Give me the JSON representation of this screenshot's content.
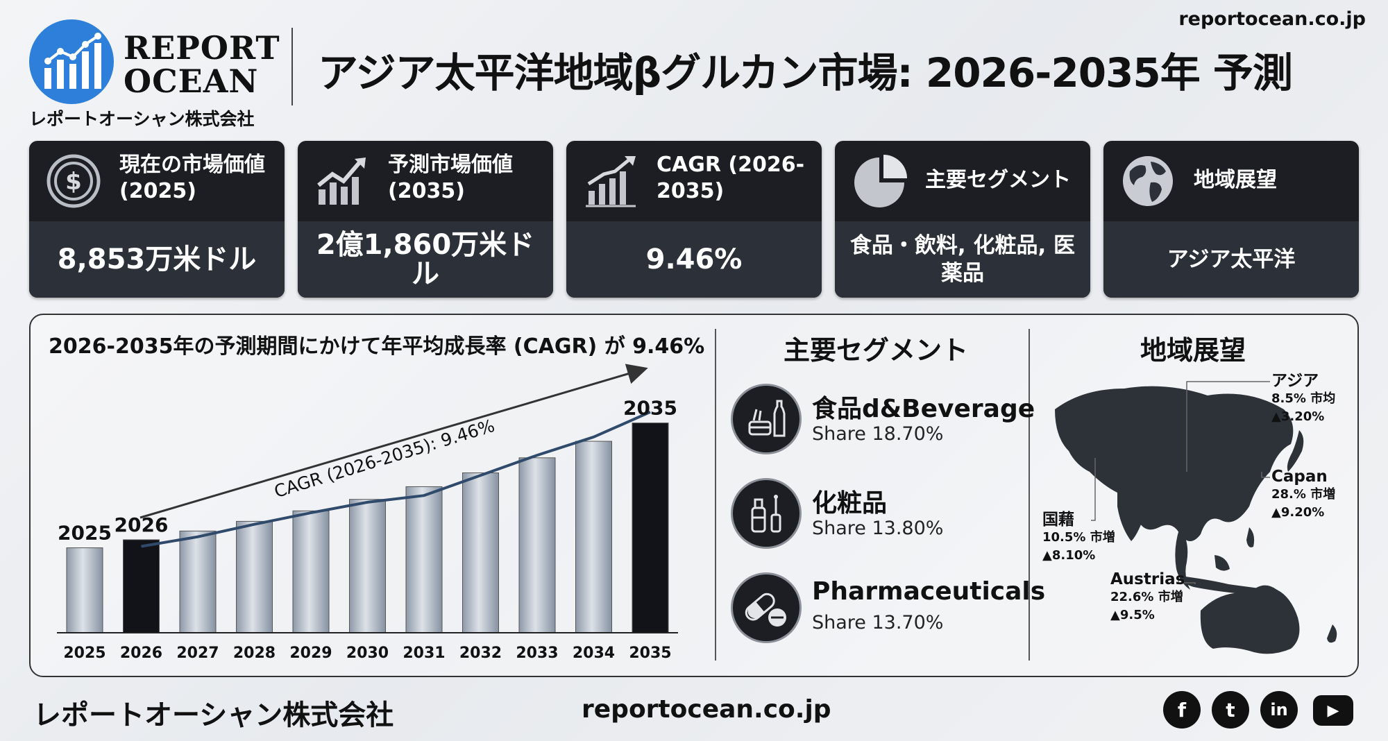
{
  "header": {
    "logo_line1": "REPORT",
    "logo_line2": "OCEAN",
    "logo_sub": "レポートオーシャン株式会社",
    "title": "アジア太平洋地域βグルカン市場: 2026-2035年 予測",
    "url": "reportocean.co.jp"
  },
  "cards": [
    {
      "title": "現在の市場価値 (2025)",
      "value": "8,853万米ドル",
      "icon": "dollar-coin-icon"
    },
    {
      "title": "予測市場価値 (2035)",
      "value": "2億1,860万米ドル",
      "icon": "growth-chart-icon"
    },
    {
      "title": "CAGR (2026-2035)",
      "value": "9.46%",
      "icon": "bar-growth-icon"
    },
    {
      "title": "主要セグメント",
      "value": "食品・飲料, 化粧品, 医薬品",
      "icon": "pie-chart-icon"
    },
    {
      "title": "地域展望",
      "value": "アジア太平洋",
      "icon": "globe-icon"
    }
  ],
  "chart_data": {
    "type": "bar",
    "title": "2026-2035年の予測期間にかけて年平均成長率 (CAGR) が 9.46%",
    "categories": [
      "2025",
      "2026",
      "2027",
      "2028",
      "2029",
      "2030",
      "2031",
      "2032",
      "2033",
      "2034",
      "2035"
    ],
    "values": [
      88.53,
      96.9,
      106.0,
      116.1,
      127.0,
      139.0,
      152.2,
      166.6,
      182.3,
      199.5,
      218.6
    ],
    "trend": [
      null,
      90,
      100,
      113,
      125,
      136,
      143,
      164,
      185,
      204,
      230
    ],
    "highlight": [
      "2026",
      "2035"
    ],
    "bar_labels": {
      "2025": "2025",
      "2026": "2026",
      "2035": "2035"
    },
    "annotation": "CAGR (2026-2035): 9.46%",
    "ylim": [
      0,
      240
    ],
    "xlabel": "",
    "ylabel": ""
  },
  "segments": {
    "title": "主要セグメント",
    "items": [
      {
        "name": "食品d&Beverage",
        "share": "Share 18.70%",
        "icon": "food-beverage-icon"
      },
      {
        "name": "化粧品",
        "share": "Share 13.80%",
        "icon": "cosmetics-icon"
      },
      {
        "name": "Pharmaceuticals",
        "share": "Share 13.70%",
        "icon": "pill-icon"
      }
    ]
  },
  "regions": {
    "title": "地域展望",
    "items": [
      {
        "name": "アジア",
        "detail": "8.5% 市均",
        "growth": "▲3.20%"
      },
      {
        "name": "Capan",
        "detail": "28.% 市増",
        "growth": "▲9.20%"
      },
      {
        "name": "国藉",
        "detail": "10.5% 市増",
        "growth": "▲8.10%"
      },
      {
        "name": "Austrias",
        "detail": "22.6% 市増",
        "growth": "▲9.5%"
      }
    ]
  },
  "footer": {
    "company": "レポートオーシャン株式会社",
    "url": "reportocean.co.jp",
    "social": [
      "f",
      "t",
      "in",
      "▶"
    ]
  },
  "colors": {
    "card_dark": "#1c1e23",
    "card_body": "#2c3038",
    "bar_light": "#a9b3c0",
    "bar_dark": "#111318",
    "trend": "#2f4a6b",
    "logo_blue": "#2d7fd9"
  }
}
